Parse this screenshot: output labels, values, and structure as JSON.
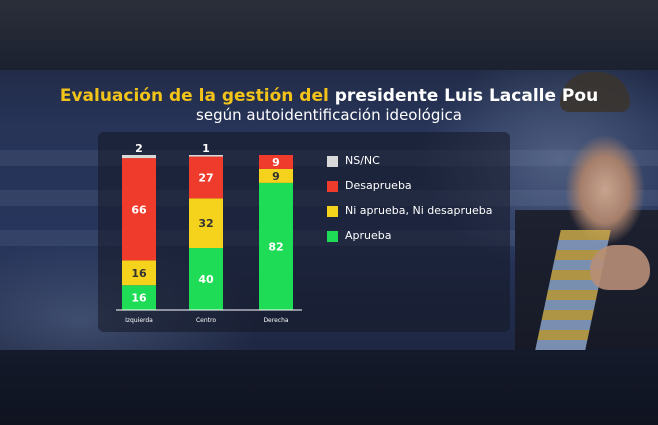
{
  "title_part1": "Evaluación de la gestión del",
  "title_part2": "presidente Luis Lacalle Pou",
  "subtitle": "según autoidentificación ideológica",
  "colors": {
    "title_accent": "#f2c318",
    "aprueba": "#1fdc57",
    "ni": "#f5d21b",
    "desaprueba": "#ef3b2c",
    "nsnc": "#d9d9d9"
  },
  "chart_data": {
    "type": "bar",
    "stacked": true,
    "normalized_to": 100,
    "categories": [
      "Izquierda",
      "Centro",
      "Derecha"
    ],
    "series": [
      {
        "name": "Aprueba",
        "color": "#1fdc57",
        "values": [
          16,
          40,
          82
        ]
      },
      {
        "name": "Ni aprueba, Ni desaprueba",
        "color": "#f5d21b",
        "values": [
          16,
          32,
          9
        ]
      },
      {
        "name": "Desaprueba",
        "color": "#ef3b2c",
        "values": [
          66,
          27,
          9
        ]
      },
      {
        "name": "NS/NC",
        "color": "#d9d9d9",
        "values": [
          2,
          1,
          0
        ]
      }
    ],
    "legend_order": [
      "NS/NC",
      "Desaprueba",
      "Ni aprueba, Ni desaprueba",
      "Aprueba"
    ],
    "legend_position": "right",
    "grid": false
  }
}
